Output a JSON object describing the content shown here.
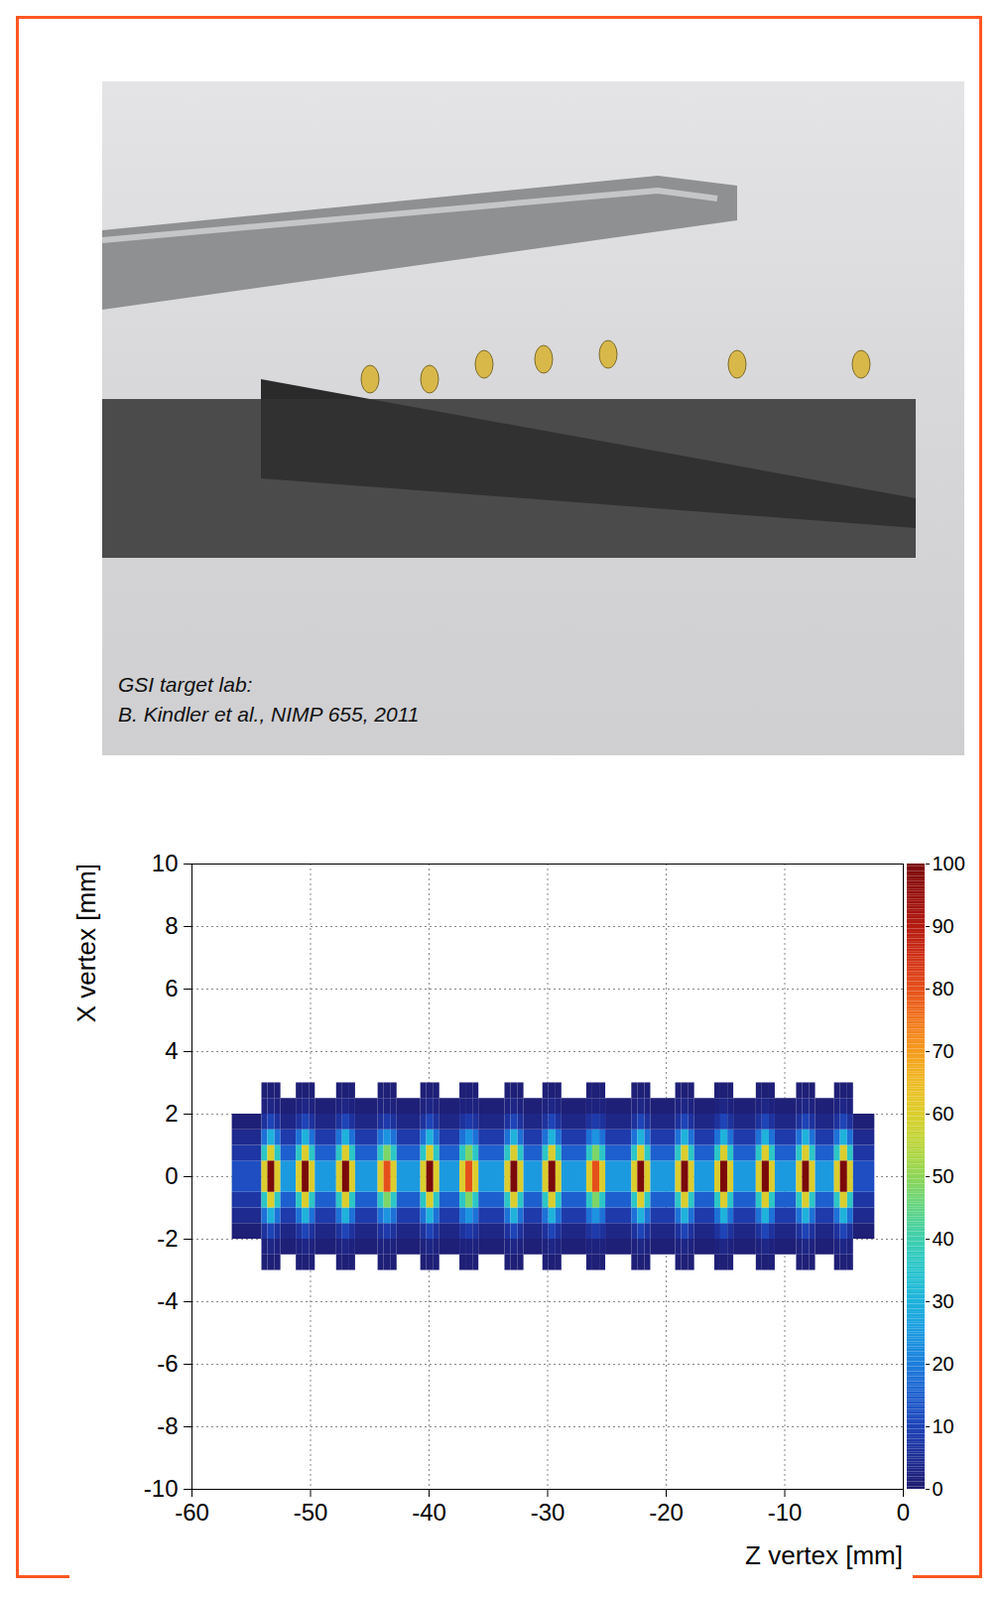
{
  "photo": {
    "caption": [
      "GSI target lab:",
      "B. Kindler et al., NIMP 655, 2011"
    ]
  },
  "chart_data": {
    "type": "heatmap",
    "xlabel": "Z vertex [mm]",
    "ylabel": "X vertex [mm]",
    "xlim": [
      -60,
      0
    ],
    "ylim": [
      -10,
      10
    ],
    "xticks": [
      -60,
      -50,
      -40,
      -30,
      -20,
      -10,
      0
    ],
    "yticks": [
      -10,
      -8,
      -6,
      -4,
      -2,
      0,
      2,
      4,
      6,
      8,
      10
    ],
    "grid": true,
    "cells": {
      "z_edges": [
        -56.6,
        -54.1,
        -53.6,
        -53.0,
        -52.5,
        -51.2,
        -50.7,
        -50.1,
        -49.6,
        -47.8,
        -47.3,
        -46.7,
        -46.2,
        -44.3,
        -43.8,
        -43.2,
        -42.7,
        -40.7,
        -40.2,
        -39.6,
        -39.1,
        -37.4,
        -36.9,
        -36.3,
        -35.8,
        -33.6,
        -33.1,
        -32.5,
        -32.0,
        -30.4,
        -29.9,
        -29.3,
        -28.8,
        -26.7,
        -26.2,
        -25.6,
        -25.1,
        -22.9,
        -22.4,
        -21.8,
        -21.3,
        -19.2,
        -18.7,
        -18.1,
        -17.6,
        -15.9,
        -15.4,
        -14.8,
        -14.3,
        -12.4,
        -11.9,
        -11.3,
        -10.8,
        -9.0,
        -8.5,
        -7.9,
        -7.4,
        -5.8,
        -5.3,
        -4.7,
        -4.2,
        -2.4
      ],
      "x_edges": [
        -3,
        -2.5,
        -2,
        -1.5,
        -1,
        -0.5,
        0,
        0.5,
        1,
        1.5,
        2,
        2.5,
        3
      ],
      "counts": [
        [
          0,
          0,
          1,
          4,
          7,
          12,
          12,
          7,
          4,
          1,
          0,
          0
        ],
        [
          1,
          2,
          6,
          18,
          36,
          60,
          60,
          36,
          18,
          6,
          2,
          1
        ],
        [
          1,
          3,
          10,
          30,
          60,
          100,
          100,
          60,
          30,
          10,
          3,
          1
        ],
        [
          1,
          2,
          6,
          18,
          36,
          60,
          60,
          36,
          18,
          6,
          2,
          1
        ],
        [
          0,
          1,
          3,
          8,
          15,
          25,
          25,
          15,
          8,
          3,
          1,
          0
        ],
        [
          1,
          2,
          6,
          18,
          36,
          60,
          60,
          36,
          18,
          6,
          2,
          1
        ],
        [
          1,
          3,
          10,
          30,
          60,
          100,
          100,
          60,
          30,
          10,
          3,
          1
        ],
        [
          1,
          2,
          6,
          18,
          36,
          60,
          60,
          36,
          18,
          6,
          2,
          1
        ],
        [
          0,
          1,
          3,
          8,
          15,
          25,
          25,
          15,
          8,
          3,
          1,
          0
        ],
        [
          1,
          2,
          6,
          18,
          36,
          60,
          60,
          36,
          18,
          6,
          2,
          1
        ],
        [
          1,
          3,
          10,
          30,
          60,
          100,
          100,
          60,
          30,
          10,
          3,
          1
        ],
        [
          1,
          2,
          6,
          18,
          36,
          60,
          60,
          36,
          18,
          6,
          2,
          1
        ],
        [
          0,
          1,
          3,
          8,
          15,
          25,
          25,
          15,
          8,
          3,
          1,
          0
        ],
        [
          1,
          2,
          6,
          18,
          36,
          60,
          60,
          36,
          18,
          6,
          2,
          1
        ],
        [
          1,
          2,
          8,
          24,
          48,
          80,
          80,
          48,
          24,
          8,
          2,
          1
        ],
        [
          1,
          2,
          6,
          18,
          36,
          60,
          60,
          36,
          18,
          6,
          2,
          1
        ],
        [
          0,
          1,
          3,
          8,
          15,
          25,
          25,
          15,
          8,
          3,
          1,
          0
        ],
        [
          1,
          2,
          6,
          18,
          36,
          60,
          60,
          36,
          18,
          6,
          2,
          1
        ],
        [
          1,
          3,
          10,
          30,
          60,
          100,
          100,
          60,
          30,
          10,
          3,
          1
        ],
        [
          1,
          2,
          6,
          18,
          36,
          60,
          60,
          36,
          18,
          6,
          2,
          1
        ],
        [
          0,
          1,
          3,
          8,
          15,
          25,
          25,
          15,
          8,
          3,
          1,
          0
        ],
        [
          1,
          2,
          6,
          18,
          36,
          60,
          60,
          36,
          18,
          6,
          2,
          1
        ],
        [
          1,
          2,
          8,
          24,
          48,
          80,
          80,
          48,
          24,
          8,
          2,
          1
        ],
        [
          1,
          2,
          6,
          18,
          36,
          60,
          60,
          36,
          18,
          6,
          2,
          1
        ],
        [
          0,
          1,
          3,
          8,
          15,
          25,
          25,
          15,
          8,
          3,
          1,
          0
        ],
        [
          1,
          2,
          6,
          18,
          36,
          60,
          60,
          36,
          18,
          6,
          2,
          1
        ],
        [
          1,
          3,
          10,
          30,
          60,
          100,
          100,
          60,
          30,
          10,
          3,
          1
        ],
        [
          1,
          2,
          6,
          18,
          36,
          60,
          60,
          36,
          18,
          6,
          2,
          1
        ],
        [
          0,
          1,
          3,
          8,
          15,
          25,
          25,
          15,
          8,
          3,
          1,
          0
        ],
        [
          1,
          2,
          6,
          18,
          36,
          60,
          60,
          36,
          18,
          6,
          2,
          1
        ],
        [
          1,
          3,
          10,
          30,
          60,
          100,
          100,
          60,
          30,
          10,
          3,
          1
        ],
        [
          1,
          2,
          6,
          18,
          36,
          60,
          60,
          36,
          18,
          6,
          2,
          1
        ],
        [
          0,
          1,
          3,
          8,
          15,
          25,
          25,
          15,
          8,
          3,
          1,
          0
        ],
        [
          1,
          2,
          6,
          18,
          36,
          60,
          60,
          36,
          18,
          6,
          2,
          1
        ],
        [
          1,
          2,
          8,
          24,
          48,
          80,
          80,
          48,
          24,
          8,
          2,
          1
        ],
        [
          1,
          2,
          6,
          18,
          36,
          60,
          60,
          36,
          18,
          6,
          2,
          1
        ],
        [
          0,
          1,
          3,
          8,
          15,
          25,
          25,
          15,
          8,
          3,
          1,
          0
        ],
        [
          1,
          2,
          6,
          18,
          36,
          60,
          60,
          36,
          18,
          6,
          2,
          1
        ],
        [
          1,
          3,
          10,
          30,
          60,
          100,
          100,
          60,
          30,
          10,
          3,
          1
        ],
        [
          1,
          2,
          6,
          18,
          36,
          60,
          60,
          36,
          18,
          6,
          2,
          1
        ],
        [
          0,
          1,
          3,
          8,
          15,
          25,
          25,
          15,
          8,
          3,
          1,
          0
        ],
        [
          1,
          2,
          6,
          18,
          36,
          60,
          60,
          36,
          18,
          6,
          2,
          1
        ],
        [
          1,
          3,
          10,
          30,
          60,
          100,
          100,
          60,
          30,
          10,
          3,
          1
        ],
        [
          1,
          2,
          6,
          18,
          36,
          60,
          60,
          36,
          18,
          6,
          2,
          1
        ],
        [
          0,
          1,
          3,
          8,
          15,
          25,
          25,
          15,
          8,
          3,
          1,
          0
        ],
        [
          1,
          2,
          6,
          18,
          36,
          60,
          60,
          36,
          18,
          6,
          2,
          1
        ],
        [
          1,
          3,
          10,
          30,
          60,
          100,
          100,
          60,
          30,
          10,
          3,
          1
        ],
        [
          1,
          2,
          6,
          18,
          36,
          60,
          60,
          36,
          18,
          6,
          2,
          1
        ],
        [
          0,
          1,
          3,
          8,
          15,
          25,
          25,
          15,
          8,
          3,
          1,
          0
        ],
        [
          1,
          2,
          6,
          18,
          36,
          60,
          60,
          36,
          18,
          6,
          2,
          1
        ],
        [
          1,
          3,
          10,
          30,
          60,
          100,
          100,
          60,
          30,
          10,
          3,
          1
        ],
        [
          1,
          2,
          6,
          18,
          36,
          60,
          60,
          36,
          18,
          6,
          2,
          1
        ],
        [
          0,
          1,
          3,
          8,
          15,
          25,
          25,
          15,
          8,
          3,
          1,
          0
        ],
        [
          1,
          2,
          6,
          18,
          36,
          60,
          60,
          36,
          18,
          6,
          2,
          1
        ],
        [
          1,
          3,
          10,
          30,
          60,
          100,
          100,
          60,
          30,
          10,
          3,
          1
        ],
        [
          1,
          2,
          6,
          18,
          36,
          60,
          60,
          36,
          18,
          6,
          2,
          1
        ],
        [
          0,
          1,
          3,
          8,
          15,
          25,
          25,
          15,
          8,
          3,
          1,
          0
        ],
        [
          1,
          2,
          6,
          18,
          36,
          60,
          60,
          36,
          18,
          6,
          2,
          1
        ],
        [
          1,
          3,
          10,
          30,
          60,
          100,
          100,
          60,
          30,
          10,
          3,
          1
        ],
        [
          1,
          2,
          6,
          18,
          36,
          60,
          60,
          36,
          18,
          6,
          2,
          1
        ],
        [
          0,
          0,
          1,
          4,
          7,
          12,
          12,
          7,
          4,
          1,
          0,
          0
        ]
      ]
    },
    "colorbar": {
      "range": [
        0,
        100
      ],
      "ticks": [
        0,
        10,
        20,
        30,
        40,
        50,
        60,
        70,
        80,
        90,
        100
      ]
    }
  }
}
